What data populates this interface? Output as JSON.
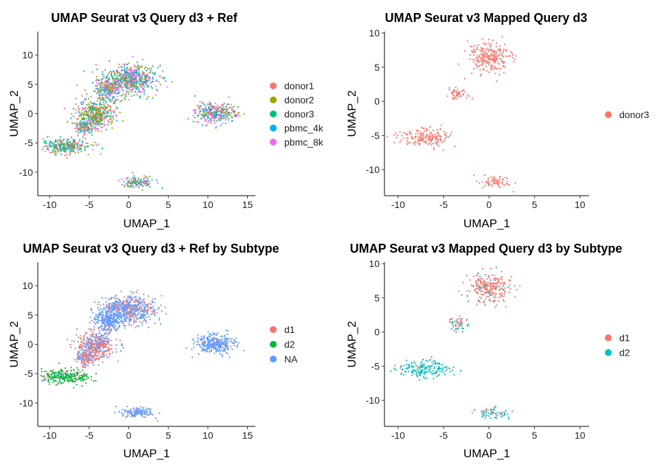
{
  "chart_data": [
    {
      "type": "scatter",
      "title": "UMAP Seurat v3 Query d3 + Ref",
      "xlabel": "UMAP_1",
      "ylabel": "UMAP_2",
      "xlim": [
        -11.5,
        16
      ],
      "ylim": [
        -14,
        14
      ],
      "xticks": [
        "-10",
        "-5",
        "0",
        "5",
        "10",
        "15"
      ],
      "yticks": [
        "10",
        "5",
        "0",
        "-5",
        "-10"
      ],
      "legend_position": "right",
      "series": [
        {
          "name": "donor1",
          "color": "#F8766D"
        },
        {
          "name": "donor2",
          "color": "#A3A500"
        },
        {
          "name": "donor3",
          "color": "#00BF7D"
        },
        {
          "name": "pbmc_4k",
          "color": "#00B0F6"
        },
        {
          "name": "pbmc_8k",
          "color": "#E76BF3"
        }
      ],
      "clusters": [
        {
          "name": "cluster-top",
          "cx": 0,
          "cy": 6,
          "rx": 3,
          "ry": 2.2
        },
        {
          "name": "cluster-upper-left",
          "cx": -2.8,
          "cy": 4.2,
          "rx": 1.5,
          "ry": 1.8
        },
        {
          "name": "cluster-middle",
          "cx": -4.2,
          "cy": 0,
          "rx": 2.2,
          "ry": 2
        },
        {
          "name": "cluster-bridge",
          "cx": -5.5,
          "cy": -2.2,
          "rx": 1.2,
          "ry": 1.3
        },
        {
          "name": "cluster-bottom-left",
          "cx": -8,
          "cy": -5.4,
          "rx": 2.8,
          "ry": 1.1
        },
        {
          "name": "cluster-right",
          "cx": 10.8,
          "cy": 0.2,
          "rx": 2.3,
          "ry": 1.5
        },
        {
          "name": "cluster-bottom",
          "cx": 1,
          "cy": -11.6,
          "rx": 1.8,
          "ry": 0.8
        }
      ]
    },
    {
      "type": "scatter",
      "title": "UMAP Seurat v3 Mapped Query d3",
      "xlabel": "UMAP_1",
      "ylabel": "UMAP_2",
      "xlim": [
        -11.5,
        11
      ],
      "ylim": [
        -13.8,
        10.2
      ],
      "xticks": [
        "-10",
        "-5",
        "0",
        "5",
        "10"
      ],
      "yticks": [
        "10",
        "5",
        "0",
        "-5",
        "-10"
      ],
      "legend_position": "right",
      "series": [
        {
          "name": "donor3",
          "color": "#F8766D"
        }
      ],
      "clusters": [
        {
          "name": "cluster-top",
          "cx": 0,
          "cy": 6.5,
          "rx": 2.2,
          "ry": 2
        },
        {
          "name": "cluster-middle",
          "cx": -3.5,
          "cy": 1.2,
          "rx": 1,
          "ry": 0.9
        },
        {
          "name": "cluster-bottom-left",
          "cx": -7.2,
          "cy": -5.2,
          "rx": 2.6,
          "ry": 1.2
        },
        {
          "name": "cluster-bottom",
          "cx": 0.5,
          "cy": -11.8,
          "rx": 1.5,
          "ry": 0.8
        }
      ]
    },
    {
      "type": "scatter",
      "title": "UMAP Seurat v3 Query d3 + Ref by Subtype",
      "xlabel": "UMAP_1",
      "ylabel": "UMAP_2",
      "xlim": [
        -11.5,
        16
      ],
      "ylim": [
        -14,
        14
      ],
      "xticks": [
        "-10",
        "-5",
        "0",
        "5",
        "10",
        "15"
      ],
      "yticks": [
        "10",
        "5",
        "0",
        "-5",
        "-10"
      ],
      "legend_position": "right",
      "series": [
        {
          "name": "d1",
          "color": "#F8766D"
        },
        {
          "name": "d2",
          "color": "#00BA38"
        },
        {
          "name": "NA",
          "color": "#619CFF"
        }
      ],
      "clusters": [
        {
          "name": "cluster-top",
          "cx": 0,
          "cy": 6,
          "rx": 3,
          "ry": 2.2
        },
        {
          "name": "cluster-upper-left",
          "cx": -2.8,
          "cy": 4.2,
          "rx": 1.5,
          "ry": 1.8
        },
        {
          "name": "cluster-middle",
          "cx": -4.2,
          "cy": 0,
          "rx": 2.2,
          "ry": 2
        },
        {
          "name": "cluster-bridge",
          "cx": -5.5,
          "cy": -2.2,
          "rx": 1.2,
          "ry": 1.3
        },
        {
          "name": "cluster-bottom-left",
          "cx": -8,
          "cy": -5.4,
          "rx": 2.8,
          "ry": 1.1
        },
        {
          "name": "cluster-right",
          "cx": 10.8,
          "cy": 0.2,
          "rx": 2.3,
          "ry": 1.5
        },
        {
          "name": "cluster-bottom",
          "cx": 1,
          "cy": -11.6,
          "rx": 1.8,
          "ry": 0.8
        }
      ]
    },
    {
      "type": "scatter",
      "title": "UMAP Seurat v3 Mapped Query d3 by Subtype",
      "xlabel": "UMAP_1",
      "ylabel": "UMAP_2",
      "xlim": [
        -11.5,
        11
      ],
      "ylim": [
        -13.8,
        10.2
      ],
      "xticks": [
        "-10",
        "-5",
        "0",
        "5",
        "10"
      ],
      "yticks": [
        "10",
        "5",
        "0",
        "-5",
        "-10"
      ],
      "legend_position": "right",
      "series": [
        {
          "name": "d1",
          "color": "#F8766D"
        },
        {
          "name": "d2",
          "color": "#00BFC4"
        }
      ],
      "clusters": [
        {
          "name": "cluster-top",
          "cx": 0,
          "cy": 6.5,
          "rx": 2.2,
          "ry": 2
        },
        {
          "name": "cluster-middle",
          "cx": -3.5,
          "cy": 1.2,
          "rx": 1,
          "ry": 0.9
        },
        {
          "name": "cluster-bottom-left",
          "cx": -7.2,
          "cy": -5.2,
          "rx": 2.6,
          "ry": 1.2
        },
        {
          "name": "cluster-bottom",
          "cx": 0.5,
          "cy": -11.8,
          "rx": 1.5,
          "ry": 0.8
        }
      ]
    }
  ]
}
